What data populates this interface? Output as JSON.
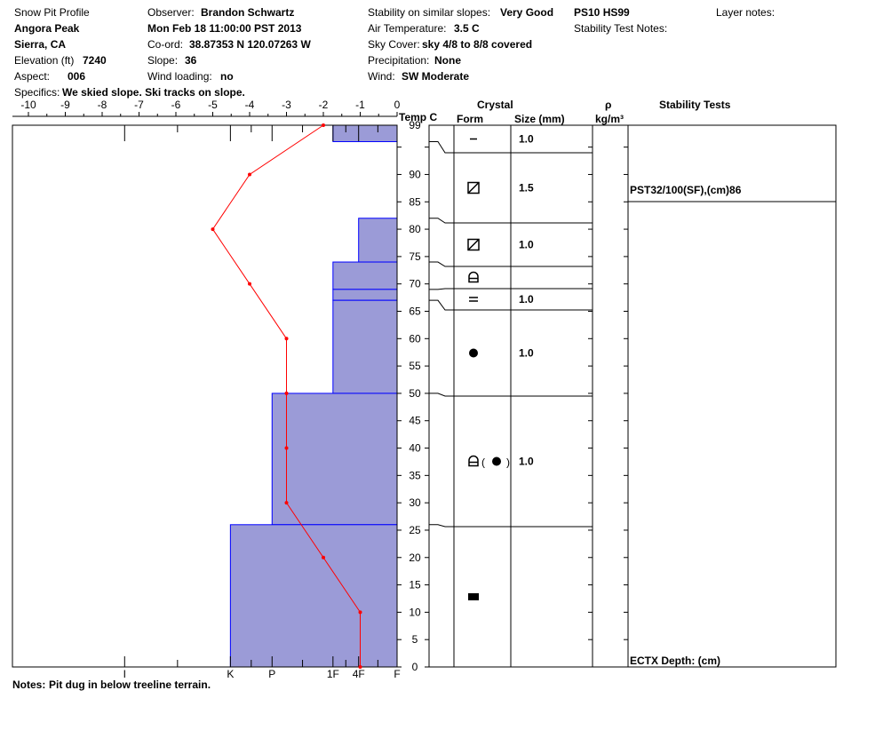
{
  "header": {
    "c1": {
      "title": "Snow Pit Profile",
      "location": "Angora Peak",
      "region": "Sierra, CA",
      "elevation_label": "Elevation (ft)",
      "elevation_value": "7240",
      "aspect_label": "Aspect:",
      "aspect_value": "006"
    },
    "c2": {
      "observer_label": "Observer:",
      "observer_value": "Brandon Schwartz",
      "datetime": "Mon Feb 18 11:00:00 PST 2013",
      "coord_label": "Co-ord:",
      "coord_value": "38.87353 N 120.07263 W",
      "slope_label": "Slope:",
      "slope_value": "36",
      "wind_loading_label": "Wind loading:",
      "wind_loading_value": "no"
    },
    "c3": {
      "stability_label": "Stability on similar slopes:",
      "stability_value": "Very Good",
      "air_temp_label": "Air Temperature:",
      "air_temp_value": "3.5 C",
      "sky_label": "Sky Cover:",
      "sky_value": "sky 4/8 to 8/8 covered",
      "precip_label": "Precipitation:",
      "precip_value": "None",
      "wind_label": "Wind:",
      "wind_value": "SW Moderate"
    },
    "c4": {
      "ps_hs": "PS10 HS99",
      "stability_test_notes_label": "Stability Test Notes:"
    },
    "c5": {
      "layer_notes_label": "Layer notes:"
    },
    "specifics_label": "Specifics:",
    "specifics_value": "We skied slope. Ski tracks on slope."
  },
  "columns": {
    "temp": "Temp C",
    "crystal": "Crystal",
    "form": "Form",
    "size": "Size (mm)",
    "rho": "ρ",
    "density_unit": "kg/m³",
    "stability_tests": "Stability Tests"
  },
  "notes_label": "Notes:",
  "notes_value": "Pit dug in below treeline terrain.",
  "colors": {
    "hardness_fill": "#9b9bd7",
    "layer_line": "#0000ff",
    "temperature_line": "#ff0000",
    "frame": "#000000"
  },
  "chart_data": {
    "type": "line",
    "title": "Snow Pit Profile",
    "temperature_axis": {
      "label": "Temp C",
      "range": [
        -10,
        0
      ],
      "ticks": [
        "-10",
        "-9",
        "-8",
        "-7",
        "-6",
        "-5",
        "-4",
        "-3",
        "-2",
        "-1",
        "0"
      ]
    },
    "height_axis": {
      "range": [
        0,
        99
      ],
      "ticks": [
        "0",
        "5",
        "10",
        "15",
        "20",
        "25",
        "30",
        "35",
        "40",
        "45",
        "50",
        "55",
        "60",
        "65",
        "70",
        "75",
        "80",
        "85",
        "90",
        "99"
      ]
    },
    "hardness_axis": {
      "ticks": [
        "I",
        "K",
        "P",
        "1F",
        "4F",
        "F"
      ],
      "scale_values": [
        6,
        4.25,
        2.6,
        1.95,
        1.0,
        0.6,
        0
      ]
    },
    "temperature_profile": [
      {
        "height": 99,
        "temp": -2.0
      },
      {
        "height": 90,
        "temp": -4.0
      },
      {
        "height": 80,
        "temp": -5.0
      },
      {
        "height": 70,
        "temp": -4.0
      },
      {
        "height": 60,
        "temp": -3.0
      },
      {
        "height": 50,
        "temp": -3.0
      },
      {
        "height": 40,
        "temp": -3.0
      },
      {
        "height": 30,
        "temp": -3.0
      },
      {
        "height": 20,
        "temp": -2.0
      },
      {
        "height": 10,
        "temp": -1.0
      },
      {
        "height": 0,
        "temp": -1.0
      }
    ],
    "layers": [
      {
        "top": 99,
        "bottom": 96,
        "hardness": "1F",
        "form": "minus",
        "size": "1.0"
      },
      {
        "top": 96,
        "bottom": 82,
        "hardness": "F",
        "form": "box-slash",
        "size": "1.5"
      },
      {
        "top": 82,
        "bottom": 74,
        "hardness": "4F",
        "form": "box-slash",
        "size": "1.0"
      },
      {
        "top": 74,
        "bottom": 69,
        "hardness": "1F",
        "form": "cup"
      },
      {
        "top": 69,
        "bottom": 67,
        "hardness": "1F",
        "form": "equals",
        "size": "1.0"
      },
      {
        "top": 67,
        "bottom": 50,
        "hardness": "1F",
        "form": "dot",
        "size": "1.0"
      },
      {
        "top": 50,
        "bottom": 26,
        "hardness": "P",
        "form": "cup-paren-dot",
        "size": "1.0"
      },
      {
        "top": 26,
        "bottom": 0,
        "hardness": "K",
        "form": "block"
      }
    ],
    "stability_tests": [
      {
        "text": "PST32/100(SF),(cm)86",
        "height": 86
      },
      {
        "text": "ECTX  Depth: (cm)",
        "height": 0
      }
    ]
  }
}
